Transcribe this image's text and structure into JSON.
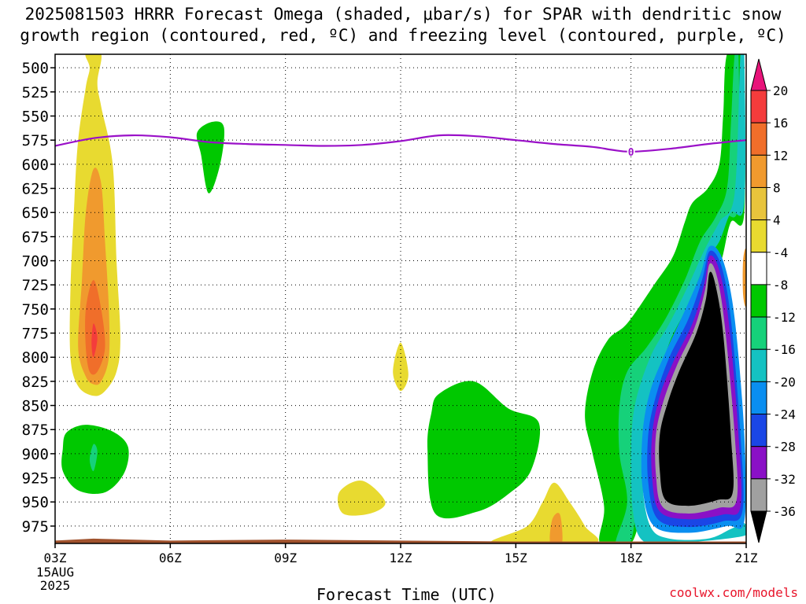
{
  "title_line1": "2025081503 HRRR Forecast Omega (shaded, μbar/s) for SPAR with dendritic snow",
  "title_line2": "growth region (contoured, red, ºC) and freezing level (contoured, purple, ºC)",
  "credit": "coolwx.com/models",
  "chart_data": {
    "type": "time-height contour",
    "xlabel": "Forecast Time (UTC)",
    "x_ticks": [
      "03Z",
      "06Z",
      "09Z",
      "12Z",
      "15Z",
      "18Z",
      "21Z"
    ],
    "x_date_line1": "15AUG",
    "x_date_line2": "2025",
    "x_range_hours": [
      3,
      21
    ],
    "y_ticks": [
      500,
      525,
      550,
      575,
      600,
      625,
      650,
      675,
      700,
      725,
      750,
      775,
      800,
      825,
      850,
      875,
      900,
      925,
      950,
      975
    ],
    "y_range_mb": [
      486,
      993
    ],
    "y_reversed": true,
    "grid": "dotted",
    "colorbar_ticks": [
      "20",
      "16",
      "12",
      "8",
      "4",
      "-4",
      "-8",
      "-12",
      "-16",
      "-20",
      "-24",
      "-28",
      "-32",
      "-36"
    ],
    "colorbar_colors": [
      "#e8147a",
      "#f43c3c",
      "#f06e2a",
      "#f09a2e",
      "#e8c43c",
      "#e8da30",
      "#ffffff",
      "#00c800",
      "#16d17a",
      "#14c2c2",
      "#0a8ef0",
      "#1a46e6",
      "#8a10c6",
      "#a0a0a0",
      "#000000"
    ],
    "freezing_level_label": "0",
    "freezing_level_color": "#9a10c8",
    "freezing_level": [
      {
        "x": 3.0,
        "y": 581
      },
      {
        "x": 4.0,
        "y": 573
      },
      {
        "x": 5.0,
        "y": 570
      },
      {
        "x": 6.0,
        "y": 572
      },
      {
        "x": 7.0,
        "y": 577
      },
      {
        "x": 8.0,
        "y": 579
      },
      {
        "x": 9.0,
        "y": 580
      },
      {
        "x": 10.0,
        "y": 581
      },
      {
        "x": 11.0,
        "y": 580
      },
      {
        "x": 12.0,
        "y": 576
      },
      {
        "x": 13.0,
        "y": 570
      },
      {
        "x": 14.0,
        "y": 571
      },
      {
        "x": 15.0,
        "y": 575
      },
      {
        "x": 16.0,
        "y": 579
      },
      {
        "x": 17.0,
        "y": 582
      },
      {
        "x": 17.5,
        "y": 585
      },
      {
        "x": 18.0,
        "y": 587
      },
      {
        "x": 19.0,
        "y": 584
      },
      {
        "x": 20.0,
        "y": 579
      },
      {
        "x": 21.0,
        "y": 575
      }
    ],
    "omega_regions": [
      {
        "value": "4",
        "color": "#e8da30",
        "points": [
          [
            3.8,
            486
          ],
          [
            4.2,
            486
          ],
          [
            4.1,
            515
          ],
          [
            4.2,
            540
          ],
          [
            4.5,
            600
          ],
          [
            4.6,
            700
          ],
          [
            4.7,
            780
          ],
          [
            4.6,
            815
          ],
          [
            4.3,
            835
          ],
          [
            4.0,
            840
          ],
          [
            3.6,
            830
          ],
          [
            3.4,
            800
          ],
          [
            3.4,
            730
          ],
          [
            3.5,
            640
          ],
          [
            3.6,
            575
          ],
          [
            3.8,
            520
          ],
          [
            3.9,
            500
          ]
        ]
      },
      {
        "value": "8",
        "color": "#f09a2e",
        "points": [
          [
            4.0,
            605
          ],
          [
            4.2,
            620
          ],
          [
            4.3,
            680
          ],
          [
            4.4,
            750
          ],
          [
            4.4,
            800
          ],
          [
            4.2,
            825
          ],
          [
            4.0,
            828
          ],
          [
            3.8,
            820
          ],
          [
            3.6,
            790
          ],
          [
            3.7,
            720
          ],
          [
            3.8,
            650
          ]
        ]
      },
      {
        "value": "12",
        "color": "#f06e2a",
        "points": [
          [
            4.0,
            720
          ],
          [
            4.2,
            750
          ],
          [
            4.3,
            790
          ],
          [
            4.1,
            815
          ],
          [
            3.9,
            815
          ],
          [
            3.8,
            790
          ],
          [
            3.8,
            750
          ]
        ]
      },
      {
        "value": "16",
        "color": "#f43c3c",
        "points": [
          [
            4.0,
            765
          ],
          [
            4.1,
            780
          ],
          [
            4.0,
            800
          ],
          [
            3.95,
            785
          ]
        ]
      },
      {
        "value": "-4",
        "color": "#00c800",
        "points": [
          [
            7.1,
            556
          ],
          [
            7.4,
            562
          ],
          [
            7.3,
            600
          ],
          [
            7.0,
            630
          ],
          [
            6.8,
            590
          ],
          [
            6.7,
            567
          ]
        ]
      },
      {
        "value": "-4",
        "color": "#00c800",
        "points": [
          [
            3.3,
            878
          ],
          [
            3.8,
            870
          ],
          [
            4.5,
            877
          ],
          [
            4.9,
            893
          ],
          [
            4.8,
            920
          ],
          [
            4.3,
            940
          ],
          [
            3.6,
            938
          ],
          [
            3.2,
            918
          ],
          [
            3.2,
            895
          ]
        ]
      },
      {
        "value": "-8",
        "color": "#16d17a",
        "points": [
          [
            4.0,
            890
          ],
          [
            4.1,
            898
          ],
          [
            4.0,
            918
          ],
          [
            3.9,
            906
          ]
        ]
      },
      {
        "value": "4",
        "color": "#e8da30",
        "points": [
          [
            12.0,
            785
          ],
          [
            12.2,
            818
          ],
          [
            12.0,
            835
          ],
          [
            11.8,
            815
          ]
        ]
      },
      {
        "value": "4",
        "color": "#e8da30",
        "points": [
          [
            10.4,
            940
          ],
          [
            11.0,
            928
          ],
          [
            11.6,
            950
          ],
          [
            11.2,
            962
          ],
          [
            10.5,
            962
          ]
        ]
      },
      {
        "value": "-4",
        "color": "#00c800",
        "points": [
          [
            13.0,
            838
          ],
          [
            13.9,
            825
          ],
          [
            14.8,
            853
          ],
          [
            15.6,
            868
          ],
          [
            15.4,
            917
          ],
          [
            14.8,
            942
          ],
          [
            14.0,
            960
          ],
          [
            12.9,
            962
          ],
          [
            12.7,
            895
          ],
          [
            12.8,
            858
          ]
        ]
      },
      {
        "value": "4",
        "color": "#e8da30",
        "points": [
          [
            14.4,
            993
          ],
          [
            15.3,
            975
          ],
          [
            15.7,
            950
          ],
          [
            16.0,
            930
          ],
          [
            16.4,
            950
          ],
          [
            16.8,
            975
          ],
          [
            17.0,
            993
          ]
        ]
      },
      {
        "value": "8",
        "color": "#f09a2e",
        "points": [
          [
            15.9,
            993
          ],
          [
            15.95,
            968
          ],
          [
            16.15,
            963
          ],
          [
            16.2,
            993
          ]
        ]
      },
      {
        "value": "-4",
        "color": "#00c800",
        "points": [
          [
            20.5,
            486
          ],
          [
            20.9,
            486
          ],
          [
            20.95,
            650
          ],
          [
            20.6,
            660
          ],
          [
            20.35,
            700
          ],
          [
            20.1,
            710
          ],
          [
            19.8,
            750
          ],
          [
            19.2,
            772
          ],
          [
            18.9,
            798
          ],
          [
            18.6,
            812
          ],
          [
            18.5,
            855
          ],
          [
            18.4,
            900
          ],
          [
            18.3,
            945
          ],
          [
            18.0,
            993
          ],
          [
            17.2,
            993
          ],
          [
            17.3,
            955
          ],
          [
            17.0,
            900
          ],
          [
            16.8,
            860
          ],
          [
            17.0,
            815
          ],
          [
            17.4,
            782
          ],
          [
            17.9,
            765
          ],
          [
            18.6,
            725
          ],
          [
            19.1,
            695
          ],
          [
            19.4,
            660
          ],
          [
            19.6,
            640
          ],
          [
            20.0,
            625
          ],
          [
            20.3,
            600
          ],
          [
            20.4,
            550
          ]
        ]
      },
      {
        "value": "-8",
        "color": "#16d17a",
        "points": [
          [
            20.7,
            486
          ],
          [
            20.8,
            486
          ],
          [
            20.8,
            640
          ],
          [
            20.45,
            655
          ],
          [
            20.15,
            690
          ],
          [
            19.7,
            725
          ],
          [
            19.2,
            760
          ],
          [
            18.8,
            790
          ],
          [
            18.5,
            830
          ],
          [
            18.3,
            880
          ],
          [
            18.2,
            930
          ],
          [
            18.0,
            990
          ],
          [
            17.6,
            993
          ],
          [
            17.9,
            950
          ],
          [
            17.7,
            900
          ],
          [
            17.7,
            850
          ],
          [
            17.9,
            815
          ],
          [
            18.4,
            790
          ],
          [
            18.9,
            760
          ],
          [
            19.4,
            720
          ],
          [
            19.8,
            680
          ],
          [
            20.2,
            655
          ],
          [
            20.5,
            625
          ],
          [
            20.6,
            560
          ]
        ]
      },
      {
        "value": "-12",
        "color": "#14c2c2",
        "points": [
          [
            20.85,
            486
          ],
          [
            20.95,
            486
          ],
          [
            20.95,
            640
          ],
          [
            20.6,
            650
          ],
          [
            20.3,
            680
          ],
          [
            19.95,
            700
          ],
          [
            19.5,
            745
          ],
          [
            19.0,
            785
          ],
          [
            18.7,
            830
          ],
          [
            18.4,
            880
          ],
          [
            18.3,
            930
          ],
          [
            18.5,
            975
          ],
          [
            19.0,
            988
          ],
          [
            20.0,
            988
          ],
          [
            20.6,
            978
          ],
          [
            20.95,
            972
          ],
          [
            20.95,
            985
          ],
          [
            19.0,
            993
          ],
          [
            18.3,
            990
          ],
          [
            18.05,
            960
          ],
          [
            18.0,
            900
          ],
          [
            18.1,
            850
          ],
          [
            18.5,
            800
          ],
          [
            19.0,
            765
          ],
          [
            19.5,
            725
          ],
          [
            19.9,
            690
          ],
          [
            20.3,
            660
          ],
          [
            20.7,
            630
          ]
        ]
      },
      {
        "value": "-16",
        "color": "#0a8ef0",
        "points": [
          [
            20.05,
            685
          ],
          [
            20.4,
            700
          ],
          [
            20.7,
            760
          ],
          [
            20.95,
            880
          ],
          [
            20.95,
            970
          ],
          [
            20.5,
            975
          ],
          [
            19.5,
            982
          ],
          [
            18.6,
            975
          ],
          [
            18.3,
            935
          ],
          [
            18.3,
            880
          ],
          [
            18.5,
            835
          ],
          [
            18.9,
            795
          ],
          [
            19.4,
            752
          ],
          [
            19.8,
            715
          ]
        ]
      },
      {
        "value": "-20",
        "color": "#1a46e6",
        "points": [
          [
            20.05,
            690
          ],
          [
            20.35,
            705
          ],
          [
            20.6,
            760
          ],
          [
            20.85,
            880
          ],
          [
            20.9,
            960
          ],
          [
            20.4,
            970
          ],
          [
            19.5,
            976
          ],
          [
            18.7,
            968
          ],
          [
            18.45,
            930
          ],
          [
            18.45,
            880
          ],
          [
            18.65,
            840
          ],
          [
            19.0,
            800
          ],
          [
            19.5,
            760
          ],
          [
            19.85,
            720
          ]
        ]
      },
      {
        "value": "-28",
        "color": "#8a10c6",
        "points": [
          [
            20.05,
            695
          ],
          [
            20.3,
            710
          ],
          [
            20.55,
            765
          ],
          [
            20.8,
            880
          ],
          [
            20.85,
            955
          ],
          [
            20.4,
            963
          ],
          [
            19.5,
            968
          ],
          [
            18.75,
            960
          ],
          [
            18.55,
            925
          ],
          [
            18.55,
            880
          ],
          [
            18.75,
            840
          ],
          [
            19.1,
            805
          ],
          [
            19.6,
            765
          ],
          [
            19.9,
            725
          ]
        ]
      },
      {
        "value": "-32",
        "color": "#a0a0a0",
        "points": [
          [
            20.05,
            703
          ],
          [
            20.25,
            718
          ],
          [
            20.45,
            770
          ],
          [
            20.7,
            880
          ],
          [
            20.75,
            948
          ],
          [
            20.3,
            956
          ],
          [
            19.5,
            962
          ],
          [
            18.82,
            955
          ],
          [
            18.65,
            922
          ],
          [
            18.65,
            880
          ],
          [
            18.85,
            845
          ],
          [
            19.2,
            808
          ],
          [
            19.65,
            770
          ],
          [
            19.92,
            732
          ]
        ]
      },
      {
        "value": "-36",
        "color": "#000000",
        "points": [
          [
            20.05,
            712
          ],
          [
            20.2,
            725
          ],
          [
            20.4,
            775
          ],
          [
            20.6,
            880
          ],
          [
            20.65,
            940
          ],
          [
            20.25,
            948
          ],
          [
            19.5,
            954
          ],
          [
            18.9,
            948
          ],
          [
            18.75,
            918
          ],
          [
            18.75,
            880
          ],
          [
            18.95,
            848
          ],
          [
            19.25,
            815
          ],
          [
            19.7,
            775
          ],
          [
            19.95,
            740
          ]
        ]
      },
      {
        "value": "8",
        "color": "#f09a2e",
        "points": [
          [
            20.92,
            700
          ],
          [
            21.0,
            690
          ],
          [
            21.0,
            745
          ],
          [
            20.92,
            735
          ]
        ]
      }
    ],
    "terrain_color": "#a0522d",
    "terrain_top": [
      {
        "x": 3.0,
        "y": 990
      },
      {
        "x": 4.0,
        "y": 988
      },
      {
        "x": 6.0,
        "y": 990
      },
      {
        "x": 9.0,
        "y": 989
      },
      {
        "x": 12.0,
        "y": 990
      },
      {
        "x": 15.0,
        "y": 991
      },
      {
        "x": 18.0,
        "y": 991
      },
      {
        "x": 21.0,
        "y": 991
      }
    ]
  }
}
